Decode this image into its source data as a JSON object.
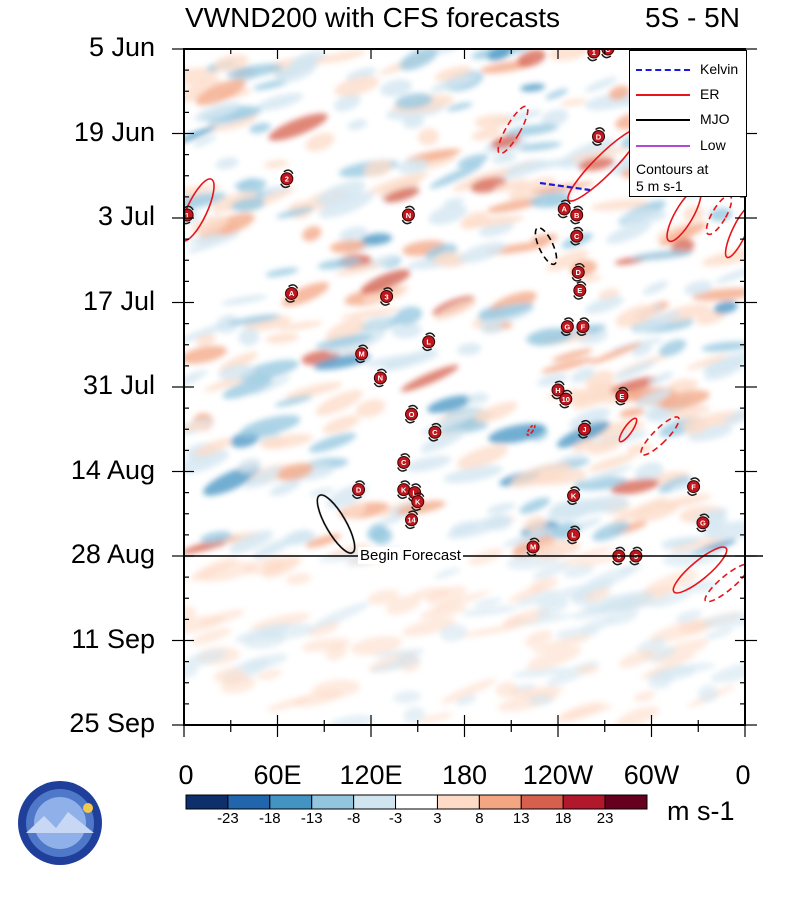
{
  "chart_data": {
    "type": "heatmap",
    "title": "VWND200 with CFS forecasts",
    "subtitle": "5S - 5N",
    "xlabel": "",
    "ylabel": "",
    "x_ticks": [
      {
        "label": "0",
        "lon": 0
      },
      {
        "label": "60E",
        "lon": 60
      },
      {
        "label": "120E",
        "lon": 120
      },
      {
        "label": "180",
        "lon": 180
      },
      {
        "label": "120W",
        "lon": 240
      },
      {
        "label": "60W",
        "lon": 300
      },
      {
        "label": "0",
        "lon": 360
      }
    ],
    "xlim": [
      0,
      360
    ],
    "y_ticks": [
      {
        "label": "5 Jun",
        "day": 0
      },
      {
        "label": "19 Jun",
        "day": 14
      },
      {
        "label": "3 Jul",
        "day": 28
      },
      {
        "label": "17 Jul",
        "day": 42
      },
      {
        "label": "31 Jul",
        "day": 56
      },
      {
        "label": "14 Aug",
        "day": 70
      },
      {
        "label": "28 Aug",
        "day": 84
      },
      {
        "label": "11 Sep",
        "day": 98
      },
      {
        "label": "25 Sep",
        "day": 112
      }
    ],
    "ylim_days": [
      0,
      112
    ],
    "forecast_start_day": 84,
    "forecast_label": "Begin Forecast",
    "colorbar": {
      "labels": [
        "-23",
        "-18",
        "-13",
        "-8",
        "-3",
        "3",
        "8",
        "13",
        "18",
        "23"
      ],
      "colors": [
        "#0d2f6b",
        "#2166ac",
        "#4393c3",
        "#92c5de",
        "#d1e5f0",
        "#ffffff",
        "#fddbc7",
        "#f4a582",
        "#d6604d",
        "#b2182b",
        "#67001f"
      ],
      "units": "m s-1"
    },
    "legend": {
      "entries": [
        {
          "name": "Kelvin",
          "color": "#1a1adf"
        },
        {
          "name": "ER",
          "color": "#e8141a"
        },
        {
          "name": "MJO",
          "color": "#000000"
        },
        {
          "name": "Low",
          "color": "#b04ad6"
        }
      ],
      "note_line1": "Contours at",
      "note_line2": "5 m s-1",
      "position": "top-right"
    },
    "storms": [
      {
        "label": "1",
        "lon": 2,
        "day": 27.5
      },
      {
        "label": "2",
        "lon": 66,
        "day": 21.5
      },
      {
        "label": "A",
        "lon": 69,
        "day": 40.5
      },
      {
        "label": "3",
        "lon": 130,
        "day": 41
      },
      {
        "label": "N",
        "lon": 144,
        "day": 27.5
      },
      {
        "label": "M",
        "lon": 114,
        "day": 50.5
      },
      {
        "label": "L",
        "lon": 157,
        "day": 48.5
      },
      {
        "label": "N",
        "lon": 126,
        "day": 54.5
      },
      {
        "label": "O",
        "lon": 146,
        "day": 60.5
      },
      {
        "label": "C",
        "lon": 161,
        "day": 63.5
      },
      {
        "label": "C",
        "lon": 141,
        "day": 68.5
      },
      {
        "label": "D",
        "lon": 112,
        "day": 73
      },
      {
        "label": "K",
        "lon": 141,
        "day": 73
      },
      {
        "label": "L",
        "lon": 148,
        "day": 73.5
      },
      {
        "label": "K",
        "lon": 150,
        "day": 75
      },
      {
        "label": "14",
        "lon": 146,
        "day": 78
      },
      {
        "label": "M",
        "lon": 224,
        "day": 82.5
      },
      {
        "label": "1",
        "lon": 263,
        "day": 0.5
      },
      {
        "label": "C",
        "lon": 272,
        "day": 0
      },
      {
        "label": "D",
        "lon": 266,
        "day": 14.5
      },
      {
        "label": "A",
        "lon": 244,
        "day": 26.5
      },
      {
        "label": "B",
        "lon": 252,
        "day": 27.5
      },
      {
        "label": "C",
        "lon": 252,
        "day": 31
      },
      {
        "label": "D",
        "lon": 253,
        "day": 37
      },
      {
        "label": "E",
        "lon": 254,
        "day": 40
      },
      {
        "label": "G",
        "lon": 246,
        "day": 46
      },
      {
        "label": "F",
        "lon": 256,
        "day": 46
      },
      {
        "label": "H",
        "lon": 240,
        "day": 56.5
      },
      {
        "label": "10",
        "lon": 245,
        "day": 58
      },
      {
        "label": "E",
        "lon": 281,
        "day": 57.5
      },
      {
        "label": "J",
        "lon": 257,
        "day": 63
      },
      {
        "label": "K",
        "lon": 250,
        "day": 74
      },
      {
        "label": "L",
        "lon": 250,
        "day": 80.5
      },
      {
        "label": "F",
        "lon": 327,
        "day": 72.5
      },
      {
        "label": "G",
        "lon": 333,
        "day": 78.5
      },
      {
        "label": "6",
        "lon": 279,
        "day": 84
      },
      {
        "label": "5",
        "lon": 290,
        "day": 84
      }
    ]
  }
}
